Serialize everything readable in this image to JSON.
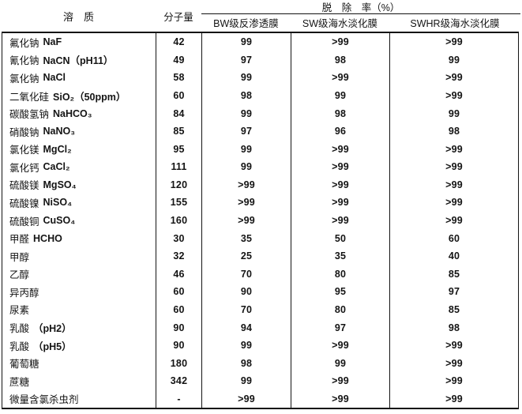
{
  "table": {
    "header": {
      "solute": "溶　质",
      "molecular_weight": "分子量",
      "rejection_group": "脱　除　率（%）",
      "membranes": [
        "BW级反渗透膜",
        "SW级海水淡化膜",
        "SWHR级海水淡化膜"
      ]
    },
    "rows": [
      {
        "cn": "氟化钠",
        "formula": "NaF",
        "mw": "42",
        "bw": "99",
        "sw": ">99",
        "swhr": ">99"
      },
      {
        "cn": "氰化钠",
        "formula": "NaCN（pH11）",
        "mw": "49",
        "bw": "97",
        "sw": "98",
        "swhr": "99"
      },
      {
        "cn": "氯化钠",
        "formula": "NaCl",
        "mw": "58",
        "bw": "99",
        "sw": ">99",
        "swhr": ">99"
      },
      {
        "cn": "二氧化硅",
        "formula": "SiO₂（50ppm）",
        "mw": "60",
        "bw": "98",
        "sw": "99",
        "swhr": ">99"
      },
      {
        "cn": "碳酸氢钠",
        "formula": "NaHCO₃",
        "mw": "84",
        "bw": "99",
        "sw": "98",
        "swhr": "99"
      },
      {
        "cn": "硝酸钠",
        "formula": "NaNO₃",
        "mw": "85",
        "bw": "97",
        "sw": "96",
        "swhr": "98"
      },
      {
        "cn": "氯化镁",
        "formula": "MgCl₂",
        "mw": "95",
        "bw": "99",
        "sw": ">99",
        "swhr": ">99"
      },
      {
        "cn": "氯化钙",
        "formula": "CaCl₂",
        "mw": "111",
        "bw": "99",
        "sw": ">99",
        "swhr": ">99"
      },
      {
        "cn": "硫酸镁",
        "formula": "MgSO₄",
        "mw": "120",
        "bw": ">99",
        "sw": ">99",
        "swhr": ">99"
      },
      {
        "cn": "硫酸镍",
        "formula": "NiSO₄",
        "mw": "155",
        "bw": ">99",
        "sw": ">99",
        "swhr": ">99"
      },
      {
        "cn": "硫酸铜",
        "formula": "CuSO₄",
        "mw": "160",
        "bw": ">99",
        "sw": ">99",
        "swhr": ">99"
      },
      {
        "cn": "甲醛",
        "formula": "HCHO",
        "mw": "30",
        "bw": "35",
        "sw": "50",
        "swhr": "60"
      },
      {
        "cn": "甲醇",
        "formula": "",
        "mw": "32",
        "bw": "25",
        "sw": "35",
        "swhr": "40"
      },
      {
        "cn": "乙醇",
        "formula": "",
        "mw": "46",
        "bw": "70",
        "sw": "80",
        "swhr": "85"
      },
      {
        "cn": "异丙醇",
        "formula": "",
        "mw": "60",
        "bw": "90",
        "sw": "95",
        "swhr": "97"
      },
      {
        "cn": "尿素",
        "formula": "",
        "mw": "60",
        "bw": "70",
        "sw": "80",
        "swhr": "85"
      },
      {
        "cn": "乳酸",
        "formula": "（pH2）",
        "mw": "90",
        "bw": "94",
        "sw": "97",
        "swhr": "98"
      },
      {
        "cn": "乳酸",
        "formula": "（pH5）",
        "mw": "90",
        "bw": "99",
        "sw": ">99",
        "swhr": ">99"
      },
      {
        "cn": "葡萄糖",
        "formula": "",
        "mw": "180",
        "bw": "98",
        "sw": "99",
        "swhr": ">99"
      },
      {
        "cn": "蔗糖",
        "formula": "",
        "mw": "342",
        "bw": "99",
        "sw": ">99",
        "swhr": ">99"
      },
      {
        "cn": "微量含氯杀虫剂",
        "formula": "",
        "mw": "-",
        "bw": ">99",
        "sw": ">99",
        "swhr": ">99"
      }
    ]
  }
}
